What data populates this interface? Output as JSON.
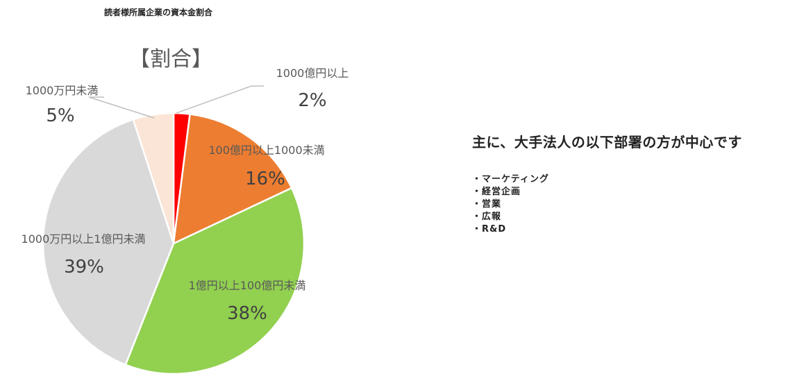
{
  "page": {
    "title": "読者様所属企業の資本金割合"
  },
  "chart_data": {
    "type": "pie",
    "title": "【割合】",
    "categories": [
      "1000億円以上",
      "100億円以上1000未満",
      "1億円以上100億円未満",
      "1000万円以上1億円未満",
      "1000万円未満"
    ],
    "values": [
      2,
      16,
      38,
      39,
      5
    ],
    "value_labels": [
      "2%",
      "16%",
      "38%",
      "39%",
      "5%"
    ],
    "colors": [
      "#ff0000",
      "#ed7d31",
      "#92d050",
      "#d9d9d9",
      "#fbe5d6"
    ],
    "start": "12 o'clock, clockwise"
  },
  "side_panel": {
    "heading": "主に、大手法人の以下部署の方が中心です",
    "departments": [
      "・マーケティング",
      "・経営企画",
      "・営業",
      "・広報",
      "・R&D"
    ]
  }
}
